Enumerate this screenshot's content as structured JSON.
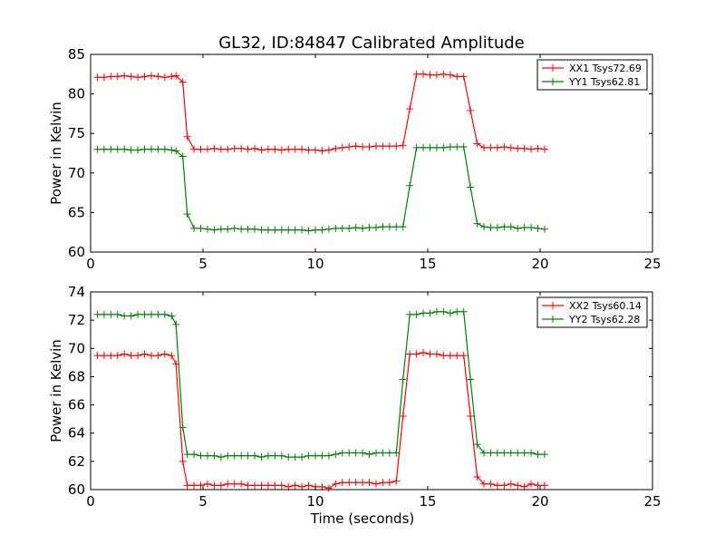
{
  "figure": {
    "title": "GL32, ID:84847 Calibrated Amplitude"
  },
  "chart_data": [
    {
      "type": "line",
      "title": "GL32, ID:84847 Calibrated Amplitude",
      "xlabel": "",
      "ylabel": "Power in Kelvin",
      "xlim": [
        0,
        25
      ],
      "ylim": [
        60,
        85
      ],
      "xticks": [
        "0",
        "5",
        "10",
        "15",
        "20",
        "25"
      ],
      "yticks": [
        "60",
        "65",
        "70",
        "75",
        "80",
        "85"
      ],
      "grid": false,
      "legend_position": "upper right",
      "x": [
        0.3,
        0.6,
        0.9,
        1.2,
        1.5,
        1.8,
        2.1,
        2.4,
        2.7,
        3.0,
        3.3,
        3.6,
        3.8,
        4.1,
        4.3,
        4.6,
        4.9,
        5.2,
        5.5,
        5.8,
        6.1,
        6.4,
        6.7,
        7.0,
        7.3,
        7.6,
        7.9,
        8.2,
        8.5,
        8.8,
        9.1,
        9.4,
        9.7,
        10.0,
        10.3,
        10.6,
        10.9,
        11.2,
        11.5,
        11.8,
        12.1,
        12.4,
        12.7,
        13.0,
        13.3,
        13.6,
        13.9,
        14.2,
        14.5,
        14.8,
        15.1,
        15.4,
        15.7,
        16.0,
        16.3,
        16.6,
        16.9,
        17.2,
        17.5,
        17.8,
        18.1,
        18.4,
        18.7,
        19.0,
        19.3,
        19.6,
        19.9,
        20.2
      ],
      "series": [
        {
          "name": "XX1 Tsys72.69",
          "color": "#ff0000",
          "values": [
            82.1,
            82.1,
            82.2,
            82.2,
            82.3,
            82.2,
            82.1,
            82.2,
            82.3,
            82.2,
            82.1,
            82.2,
            82.3,
            81.5,
            74.6,
            73.0,
            73.0,
            73.0,
            73.1,
            73.0,
            73.0,
            73.1,
            73.1,
            73.0,
            73.1,
            72.9,
            73.0,
            73.0,
            72.9,
            73.0,
            73.0,
            73.0,
            72.9,
            72.9,
            72.8,
            72.9,
            73.1,
            73.2,
            73.3,
            73.4,
            73.3,
            73.3,
            73.4,
            73.4,
            73.4,
            73.4,
            73.5,
            78.1,
            82.5,
            82.5,
            82.4,
            82.4,
            82.5,
            82.4,
            82.2,
            82.2,
            77.9,
            73.7,
            73.2,
            73.2,
            73.2,
            73.3,
            73.2,
            73.1,
            73.1,
            73.0,
            73.1,
            73.0
          ]
        },
        {
          "name": "YY1 Tsys62.81",
          "color": "#008000",
          "values": [
            73.0,
            73.0,
            73.0,
            73.0,
            73.0,
            72.9,
            72.9,
            73.0,
            73.0,
            73.0,
            73.0,
            72.9,
            72.8,
            72.1,
            64.8,
            63.0,
            63.0,
            62.9,
            62.8,
            62.9,
            62.9,
            63.0,
            62.9,
            62.9,
            62.9,
            62.8,
            62.8,
            62.8,
            62.8,
            62.8,
            62.8,
            62.8,
            62.7,
            62.8,
            62.8,
            62.9,
            63.0,
            63.0,
            63.0,
            63.1,
            63.0,
            63.1,
            63.1,
            63.2,
            63.2,
            63.2,
            63.2,
            68.4,
            73.2,
            73.2,
            73.2,
            73.2,
            73.2,
            73.3,
            73.3,
            73.3,
            68.2,
            63.6,
            63.2,
            63.1,
            63.1,
            63.2,
            63.2,
            63.0,
            63.1,
            63.1,
            63.0,
            62.9
          ]
        }
      ]
    },
    {
      "type": "line",
      "title": "",
      "xlabel": "Time (seconds)",
      "ylabel": "Power in Kelvin",
      "xlim": [
        0,
        25
      ],
      "ylim": [
        60,
        74
      ],
      "xticks": [
        "0",
        "5",
        "10",
        "15",
        "20",
        "25"
      ],
      "yticks": [
        "60",
        "62",
        "64",
        "66",
        "68",
        "70",
        "72",
        "74"
      ],
      "grid": false,
      "legend_position": "upper right",
      "x": [
        0.3,
        0.6,
        0.9,
        1.2,
        1.5,
        1.8,
        2.1,
        2.4,
        2.7,
        3.0,
        3.3,
        3.6,
        3.8,
        4.1,
        4.3,
        4.6,
        4.9,
        5.2,
        5.5,
        5.8,
        6.1,
        6.4,
        6.7,
        7.0,
        7.3,
        7.6,
        7.9,
        8.2,
        8.5,
        8.8,
        9.1,
        9.4,
        9.7,
        10.0,
        10.3,
        10.6,
        10.9,
        11.2,
        11.5,
        11.8,
        12.1,
        12.4,
        12.7,
        13.0,
        13.3,
        13.6,
        13.9,
        14.2,
        14.5,
        14.8,
        15.1,
        15.4,
        15.7,
        16.0,
        16.3,
        16.6,
        16.9,
        17.2,
        17.5,
        17.8,
        18.1,
        18.4,
        18.7,
        19.0,
        19.3,
        19.6,
        19.9,
        20.2
      ],
      "series": [
        {
          "name": "XX2 Tsys60.14",
          "color": "#ff0000",
          "values": [
            69.5,
            69.5,
            69.5,
            69.5,
            69.6,
            69.5,
            69.5,
            69.6,
            69.5,
            69.5,
            69.6,
            69.5,
            68.9,
            62.0,
            60.3,
            60.3,
            60.3,
            60.4,
            60.3,
            60.3,
            60.4,
            60.4,
            60.4,
            60.3,
            60.3,
            60.3,
            60.3,
            60.3,
            60.3,
            60.2,
            60.3,
            60.2,
            60.3,
            60.2,
            60.2,
            60.1,
            60.4,
            60.5,
            60.5,
            60.5,
            60.5,
            60.5,
            60.4,
            60.5,
            60.5,
            60.6,
            65.2,
            69.6,
            69.6,
            69.7,
            69.6,
            69.6,
            69.5,
            69.5,
            69.5,
            69.5,
            65.2,
            60.9,
            60.4,
            60.4,
            60.3,
            60.3,
            60.4,
            60.3,
            60.2,
            60.4,
            60.3,
            60.3
          ]
        },
        {
          "name": "YY2 Tsys62.28",
          "color": "#008000",
          "values": [
            72.4,
            72.4,
            72.4,
            72.4,
            72.3,
            72.3,
            72.4,
            72.4,
            72.4,
            72.4,
            72.4,
            72.3,
            71.7,
            64.4,
            62.5,
            62.5,
            62.4,
            62.4,
            62.4,
            62.3,
            62.4,
            62.4,
            62.4,
            62.4,
            62.4,
            62.3,
            62.4,
            62.4,
            62.4,
            62.3,
            62.3,
            62.3,
            62.4,
            62.4,
            62.4,
            62.4,
            62.5,
            62.6,
            62.6,
            62.6,
            62.6,
            62.5,
            62.6,
            62.6,
            62.6,
            62.6,
            67.8,
            72.4,
            72.4,
            72.5,
            72.5,
            72.6,
            72.6,
            72.5,
            72.6,
            72.6,
            67.8,
            63.2,
            62.6,
            62.6,
            62.6,
            62.6,
            62.6,
            62.6,
            62.6,
            62.6,
            62.5,
            62.5
          ]
        }
      ]
    }
  ]
}
